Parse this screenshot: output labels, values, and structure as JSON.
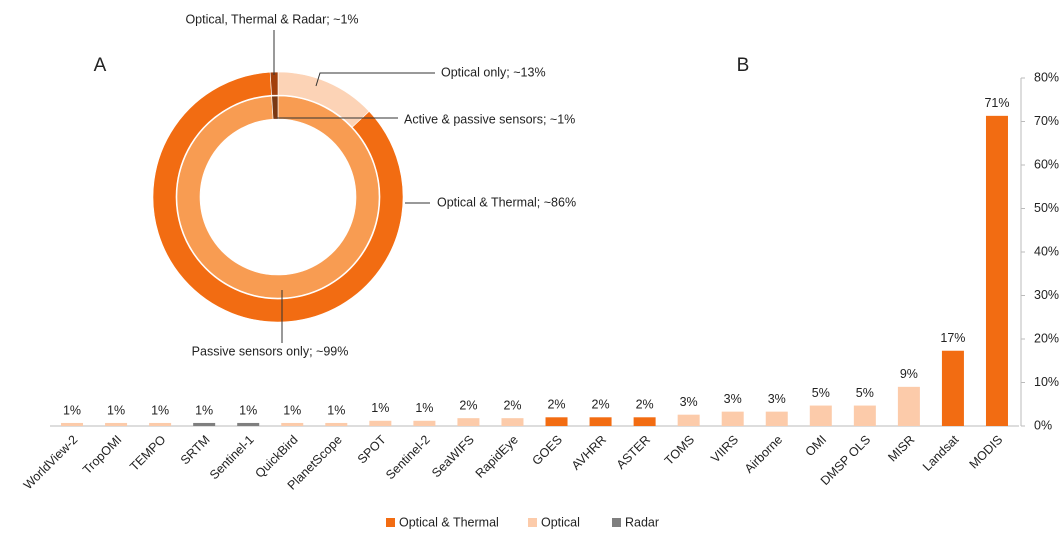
{
  "chart_data": [
    {
      "type": "donut",
      "label": "A",
      "rings": [
        {
          "values": [
            13,
            86,
            1
          ],
          "value_labels": [
            "Optical only; ~13%",
            "Optical & Thermal; ~86%",
            "Optical, Thermal & Radar; ~1%"
          ],
          "colors": [
            "#fcd3b6",
            "#f26c12",
            "#a3400c"
          ]
        },
        {
          "values": [
            99,
            1
          ],
          "value_labels": [
            "Passive sensors only; ~99%",
            "Active & passive sensors; ~1%"
          ],
          "colors": [
            "#f89c52",
            "#7a3812"
          ]
        }
      ]
    },
    {
      "type": "bar",
      "label": "B",
      "categories": [
        "WorldView-2",
        "TropOMI",
        "TEMPO",
        "SRTM",
        "Sentinel-1",
        "QuickBird",
        "PlanetScope",
        "SPOT",
        "Sentinel-2",
        "SeaWIFS",
        "RapidEye",
        "GOES",
        "AVHRR",
        "ASTER",
        "TOMS",
        "VIIRS",
        "Airborne",
        "OMI",
        "DMSP OLS",
        "MISR",
        "Landsat",
        "MODIS"
      ],
      "series": [
        {
          "name": "Optical & Thermal",
          "color": "#f26c12",
          "values": [
            null,
            null,
            null,
            null,
            null,
            null,
            null,
            null,
            null,
            null,
            null,
            2,
            2,
            2,
            null,
            null,
            null,
            null,
            null,
            null,
            17.3,
            71.3
          ],
          "value_labels": [
            null,
            null,
            null,
            null,
            null,
            null,
            null,
            null,
            null,
            null,
            null,
            "2%",
            "2%",
            "2%",
            null,
            null,
            null,
            null,
            null,
            null,
            "17%",
            "71%"
          ]
        },
        {
          "name": "Optical",
          "color": "#fccbaa",
          "values": [
            0.7,
            0.7,
            0.7,
            null,
            null,
            0.7,
            0.7,
            1.2,
            1.2,
            1.8,
            1.8,
            null,
            null,
            null,
            2.6,
            3.3,
            3.3,
            4.7,
            4.7,
            9,
            null,
            null
          ],
          "value_labels": [
            "1%",
            "1%",
            "1%",
            null,
            null,
            "1%",
            "1%",
            "1%",
            "1%",
            "2%",
            "2%",
            null,
            null,
            null,
            "3%",
            "3%",
            "3%",
            "5%",
            "5%",
            "9%",
            null,
            null
          ]
        },
        {
          "name": "Radar",
          "color": "#7f7f7f",
          "values": [
            null,
            null,
            null,
            0.7,
            0.7,
            null,
            null,
            null,
            null,
            null,
            null,
            null,
            null,
            null,
            null,
            null,
            null,
            null,
            null,
            null,
            null,
            null
          ],
          "value_labels": [
            null,
            null,
            null,
            "1%",
            "1%",
            null,
            null,
            null,
            null,
            null,
            null,
            null,
            null,
            null,
            null,
            null,
            null,
            null,
            null,
            null,
            null,
            null
          ]
        }
      ],
      "ylim": [
        0,
        80
      ],
      "yticks": [
        {
          "value": 0,
          "label": "0%"
        },
        {
          "value": 10,
          "label": "10%"
        },
        {
          "value": 20,
          "label": "20%"
        },
        {
          "value": 30,
          "label": "30%"
        },
        {
          "value": 40,
          "label": "40%"
        },
        {
          "value": 50,
          "label": "50%"
        },
        {
          "value": 60,
          "label": "60%"
        },
        {
          "value": 70,
          "label": "70%"
        },
        {
          "value": 80,
          "label": "80%"
        }
      ],
      "grid": false
    }
  ]
}
